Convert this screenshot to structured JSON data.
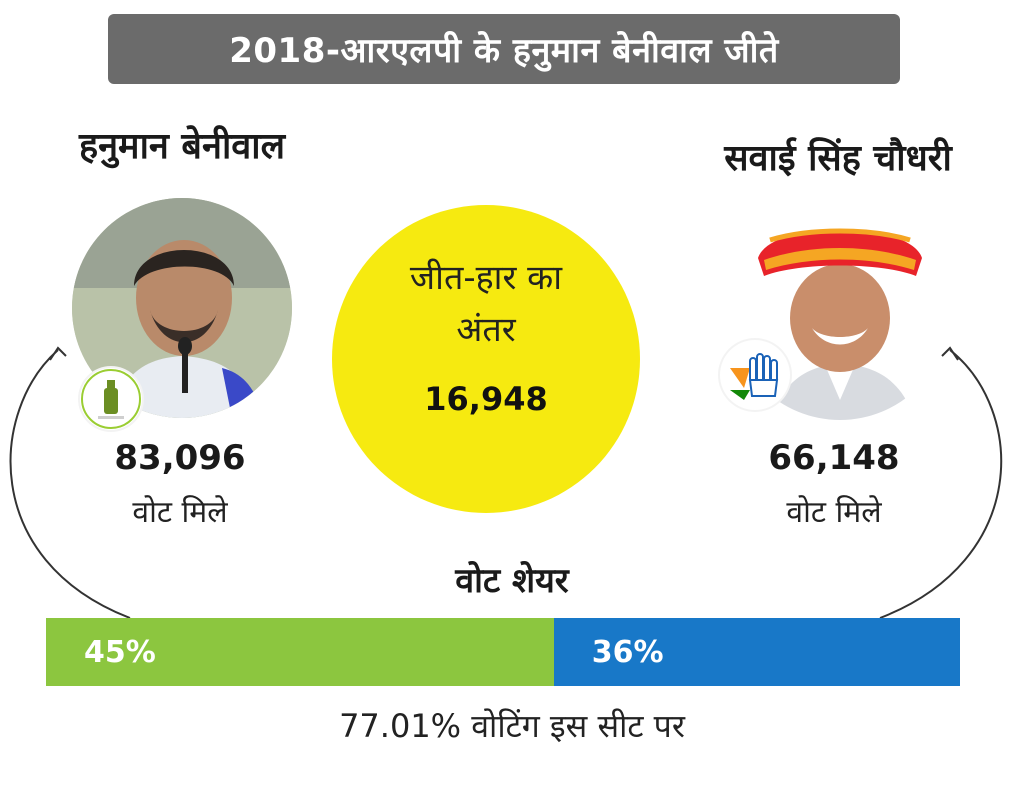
{
  "title": "2018-आरएलपी के हनुमान बेनीवाल जीते",
  "candidates": {
    "left": {
      "name": "हनुमान बेनीवाल",
      "votes": "83,096",
      "votes_label": "वोट मिले",
      "share_label": "45%",
      "share": 45,
      "color": "#8cc63f"
    },
    "right": {
      "name": "सवाई सिंह चौधरी",
      "votes": "66,148",
      "votes_label": "वोट मिले",
      "share_label": "36%",
      "share": 36,
      "color": "#1878c8"
    }
  },
  "margin": {
    "label_line1": "जीत-हार का",
    "label_line2": "अंतर",
    "value": "16,948",
    "color": "#f6ea10"
  },
  "vote_share": {
    "title": "वोट शेयर"
  },
  "turnout": "77.01% वोटिंग इस सीट पर"
}
